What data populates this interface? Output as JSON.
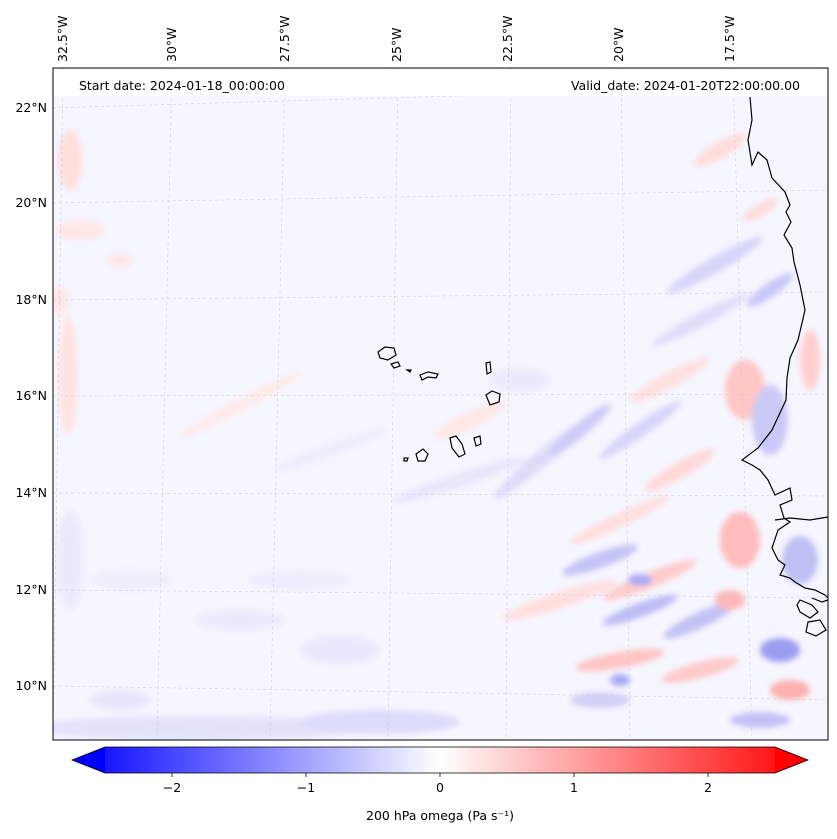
{
  "header": {
    "start_date": "Start date: 2024-01-18_00:00:00",
    "valid_date": "Valid_date: 2024-01-20T22:00:00.00"
  },
  "map": {
    "lon_labels": [
      "32.5°W",
      "30°W",
      "27.5°W",
      "25°W",
      "22.5°W",
      "20°W",
      "17.5°W"
    ],
    "lat_labels": [
      "22°N",
      "20°N",
      "18°N",
      "16°N",
      "14°N",
      "12°N",
      "10°N"
    ],
    "colors": {
      "positive": "#ff0000",
      "negative": "#0000ff",
      "neutral": "#ffffff",
      "coast": "#000000"
    }
  },
  "colorbar": {
    "label": "200 hPa omega (Pa s⁻¹)",
    "ticks": [
      "−2",
      "−1",
      "0",
      "1",
      "2"
    ],
    "tick_values": [
      -2,
      -1,
      0,
      1,
      2
    ],
    "range": [
      -2.5,
      2.5
    ]
  }
}
